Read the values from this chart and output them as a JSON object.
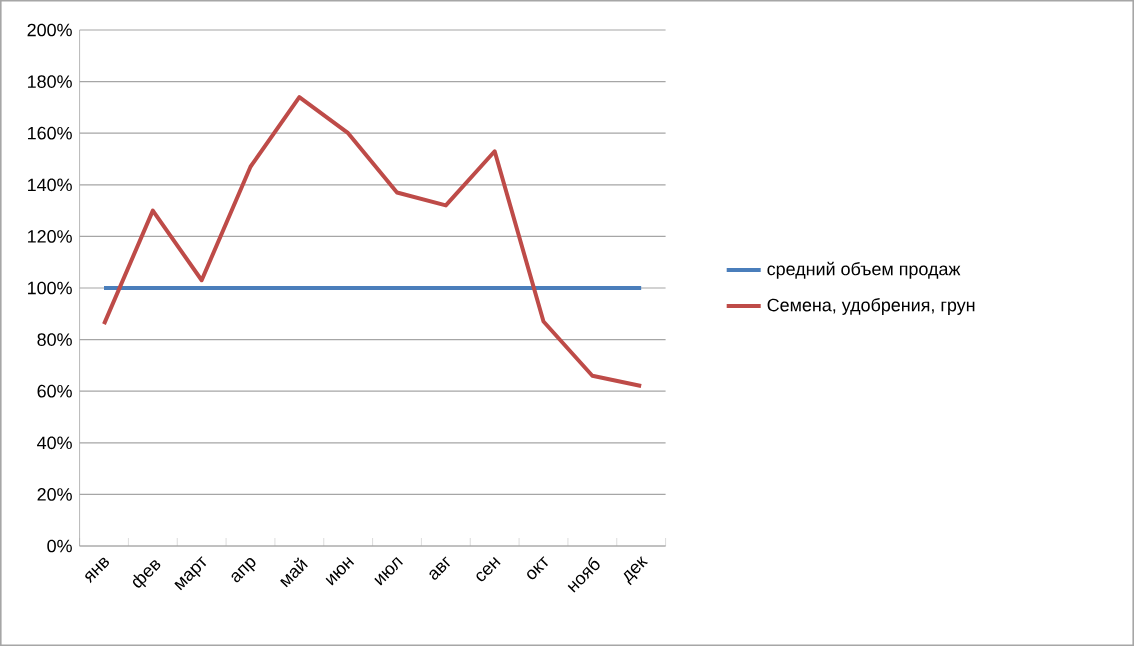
{
  "chart_data": {
    "type": "line",
    "categories": [
      "янв",
      "фев",
      "март",
      "апр",
      "май",
      "июн",
      "июл",
      "авг",
      "сен",
      "окт",
      "нояб",
      "дек"
    ],
    "series": [
      {
        "name": "средний объем продаж",
        "color": "#4a7ebb",
        "values": [
          100,
          100,
          100,
          100,
          100,
          100,
          100,
          100,
          100,
          100,
          100,
          100
        ]
      },
      {
        "name": "Семена, удобрения, грун",
        "color": "#be4b48",
        "values": [
          86,
          130,
          103,
          147,
          174,
          160,
          137,
          132,
          153,
          87,
          66,
          62
        ]
      }
    ],
    "ylim": [
      0,
      200
    ],
    "yticks": [
      {
        "value": 0,
        "label": "0%"
      },
      {
        "value": 20,
        "label": "20%"
      },
      {
        "value": 40,
        "label": "40%"
      },
      {
        "value": 60,
        "label": "60%"
      },
      {
        "value": 80,
        "label": "80%"
      },
      {
        "value": 100,
        "label": "100%"
      },
      {
        "value": 120,
        "label": "120%"
      },
      {
        "value": 140,
        "label": "140%"
      },
      {
        "value": 160,
        "label": "160%"
      },
      {
        "value": 180,
        "label": "180%"
      },
      {
        "value": 200,
        "label": "200%"
      }
    ],
    "grid": "y",
    "legend": "right",
    "marker": "none",
    "line_style": "solid"
  }
}
